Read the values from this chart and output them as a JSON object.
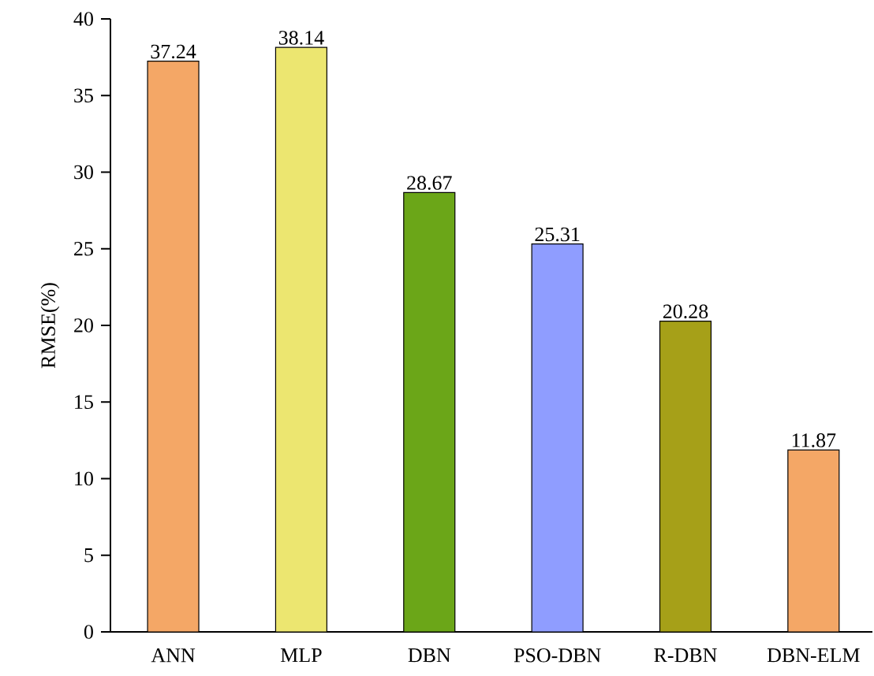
{
  "chart_data": {
    "type": "bar",
    "ylabel": "RMSE(%)",
    "categories": [
      "ANN",
      "MLP",
      "DBN",
      "PSO-DBN",
      "R-DBN",
      "DBN-ELM"
    ],
    "values": [
      37.24,
      38.14,
      28.67,
      25.31,
      20.28,
      11.87
    ],
    "colors": [
      "#f4a766",
      "#ece670",
      "#6ba618",
      "#8f9dff",
      "#a6a018",
      "#f4a766"
    ],
    "ylim": [
      0,
      40
    ],
    "yticks": [
      0,
      5,
      10,
      15,
      20,
      25,
      30,
      35,
      40
    ],
    "data_labels": true
  }
}
